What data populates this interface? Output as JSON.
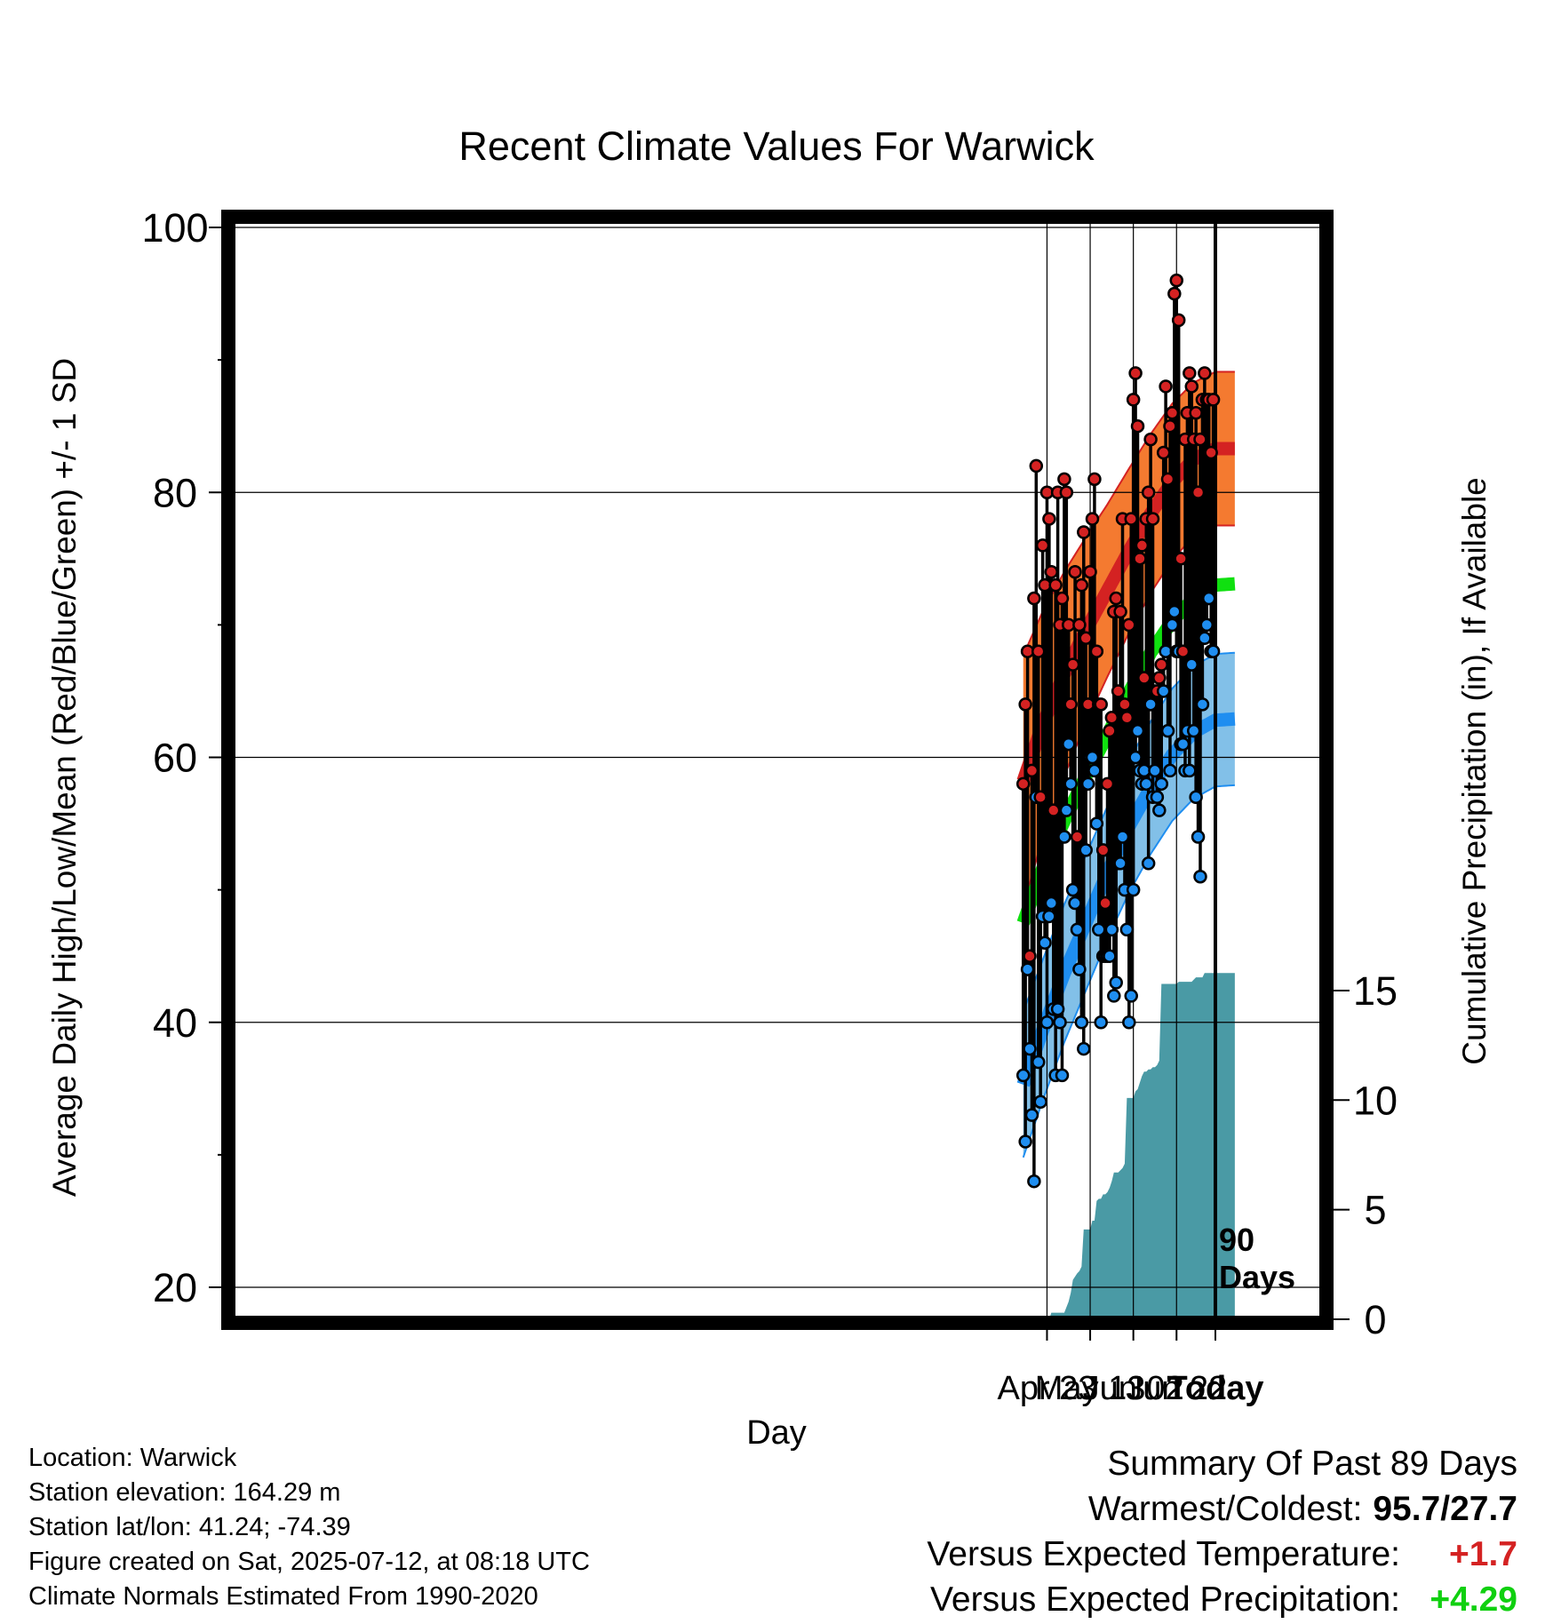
{
  "chart_data": {
    "type": "line",
    "title": "Recent Climate Values For Warwick",
    "xlabel": "Day",
    "ylabel": "Average Daily High/Low/Mean (Red/Blue/Green) +/- 1 SD",
    "y2label": "Cumulative Precipitation (in), If Available",
    "ylim": [
      18,
      100
    ],
    "y2lim": [
      0,
      18.5
    ],
    "yticks": [
      20,
      40,
      60,
      80,
      100
    ],
    "y2ticks": [
      0,
      5,
      10,
      15
    ],
    "x_range_days": [
      -89,
      9
    ],
    "xticks": [
      {
        "day": -78,
        "label": "Apr 23"
      },
      {
        "day": -58,
        "label": "May 13"
      },
      {
        "day": -38,
        "label": "Jun 02"
      },
      {
        "day": -18,
        "label": "Jun 22"
      },
      {
        "day": 0,
        "label": "Today"
      }
    ],
    "today_label": [
      "90",
      "Days"
    ],
    "grid": true,
    "colors": {
      "high_band": "#f47a30",
      "high_mean": "#d42222",
      "high_edge": "#d42222",
      "low_band": "#82c0e8",
      "low_mean": "#1f8ef0",
      "low_edge": "#1f8ef0",
      "mean_line": "#10e010",
      "precip": "#4a9aa5",
      "high_dot": "#d42222",
      "low_dot": "#1f8ef0",
      "plus_temp": "#d42222",
      "plus_precip": "#10d010"
    },
    "normals": {
      "days": [
        -89,
        -80,
        -70,
        -60,
        -50,
        -40,
        -30,
        -20,
        -10,
        0,
        9
      ],
      "normal_high": [
        58.2,
        62.5,
        66.3,
        69.6,
        72.6,
        75.6,
        78.4,
        80.8,
        82.5,
        83.3,
        83.3
      ],
      "normal_high_sd": [
        9.5,
        8.5,
        7.7,
        7.0,
        6.5,
        6.2,
        6.0,
        5.9,
        5.8,
        5.8,
        5.8
      ],
      "normal_low": [
        35.3,
        39.4,
        43.7,
        47.5,
        51.3,
        54.8,
        57.7,
        60.2,
        61.9,
        62.8,
        62.9
      ],
      "normal_low_sd": [
        5.5,
        5.3,
        5.2,
        5.1,
        5.0,
        5.0,
        5.0,
        5.0,
        5.0,
        5.0,
        5.0
      ],
      "normal_mean": [
        47.5,
        51.6,
        55.2,
        58.6,
        61.7,
        64.9,
        67.9,
        70.3,
        72.0,
        73.0,
        73.1
      ]
    },
    "series": [
      {
        "name": "High",
        "values": [
          58,
          64,
          68,
          45,
          59,
          72,
          82,
          68,
          57,
          76,
          73,
          80,
          78,
          74,
          56,
          73,
          80,
          70,
          72,
          81,
          80,
          70,
          64,
          67,
          74,
          54,
          70,
          73,
          77,
          69,
          64,
          74,
          78,
          81,
          68,
          64,
          64,
          53,
          49,
          58,
          62,
          63,
          71,
          72,
          65,
          71,
          78,
          64,
          63,
          70,
          78,
          87,
          89,
          85,
          75,
          76,
          66,
          78,
          80,
          84,
          78,
          65,
          65,
          66,
          67,
          83,
          88,
          81,
          85,
          86,
          95,
          96,
          93,
          75,
          68,
          84,
          86,
          89,
          88,
          84,
          86,
          80,
          84,
          87,
          89,
          87,
          87,
          83,
          87
        ]
      },
      {
        "name": "Low",
        "values": [
          36,
          31,
          44,
          38,
          33,
          28,
          57,
          37,
          34,
          48,
          46,
          40,
          48,
          49,
          41,
          36,
          41,
          40,
          36,
          54,
          56,
          61,
          58,
          50,
          49,
          47,
          44,
          40,
          38,
          53,
          58,
          60,
          60,
          59,
          55,
          47,
          40,
          45,
          45,
          45,
          45,
          47,
          42,
          43,
          52,
          52,
          54,
          50,
          47,
          40,
          42,
          50,
          60,
          62,
          59,
          58,
          59,
          58,
          52,
          64,
          57,
          59,
          57,
          56,
          58,
          65,
          68,
          62,
          59,
          70,
          71,
          68,
          68,
          61,
          61,
          59,
          62,
          59,
          67,
          62,
          57,
          54,
          51,
          64,
          69,
          70,
          72,
          68,
          68
        ]
      },
      {
        "name": "Cumulative Precipitation",
        "x": [
          -89,
          -77,
          -76,
          -71,
          -70,
          -68,
          -67,
          -66,
          -64,
          -63,
          -62,
          -61,
          -60,
          -58,
          -57,
          -56,
          -55,
          -54,
          -53,
          -52,
          -51,
          -50,
          -49,
          -48,
          -47,
          -46,
          -45,
          -44,
          -43,
          -42,
          -41,
          -40,
          -39,
          -38,
          -37,
          -36,
          -35,
          -34,
          -33,
          -32,
          -31,
          -30,
          -29,
          -28,
          -27,
          -26,
          -25,
          -24,
          -23,
          -22,
          -21,
          -20,
          -19,
          -18,
          -17,
          -16,
          -15,
          -14,
          -13,
          -12,
          -11,
          -10,
          -9,
          -8,
          -7,
          -6,
          -5,
          -4,
          -3,
          -2,
          -1,
          0,
          9
        ],
        "values": [
          0,
          0,
          0.3,
          0.3,
          0.3,
          0.8,
          1.2,
          1.8,
          2.1,
          2.2,
          2.4,
          4.1,
          4.1,
          4.1,
          4.5,
          4.5,
          5.4,
          5.5,
          5.5,
          5.7,
          5.7,
          5.8,
          6.0,
          6.3,
          6.7,
          6.7,
          6.7,
          6.8,
          6.9,
          7.1,
          10.1,
          10.1,
          10.1,
          10.1,
          10.4,
          10.5,
          10.8,
          11.1,
          11.3,
          11.3,
          11.4,
          11.4,
          11.5,
          11.5,
          11.6,
          11.8,
          15.3,
          15.3,
          15.3,
          15.3,
          15.3,
          15.3,
          15.3,
          15.3,
          15.4,
          15.4,
          15.4,
          15.4,
          15.4,
          15.4,
          15.4,
          15.5,
          15.6,
          15.6,
          15.6,
          15.6,
          15.8,
          15.8,
          15.8,
          15.8,
          15.8,
          15.8,
          15.8
        ]
      }
    ]
  },
  "meta": {
    "location": "Location: Warwick",
    "elevation": "Station elevation: 164.29 m",
    "latlon": "Station lat/lon: 41.24; -74.39",
    "created": "Figure created on Sat, 2025-07-12, at 08:18 UTC",
    "normals": "Climate Normals Estimated From 1990-2020"
  },
  "summary": {
    "heading": "Summary Of Past 89 Days",
    "warm_cold_label": "Warmest/Coldest:",
    "warm_cold_value": "95.7/27.7",
    "temp_label": "Versus Expected Temperature:",
    "temp_value": "+1.7",
    "precip_label": "Versus Expected Precipitation:",
    "precip_value": "+4.29"
  }
}
